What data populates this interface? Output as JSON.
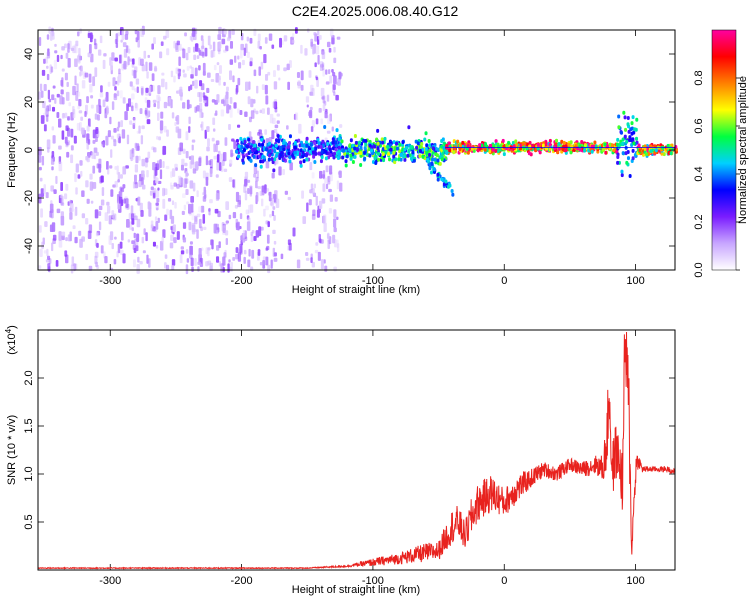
{
  "figure": {
    "title": "C2E4.2025.006.08.40.G12"
  },
  "chart_data": [
    {
      "type": "heatmap",
      "xlabel": "Height of straight line (km)",
      "ylabel": "Frequency (Hz)",
      "xlim": [
        -355,
        130
      ],
      "ylim": [
        -50,
        50
      ],
      "xticks": [
        -300,
        -200,
        -100,
        0,
        100
      ],
      "yticks": [
        -40,
        -20,
        0,
        20,
        40
      ],
      "colorbar": {
        "label": "Normalized spectral amplitude",
        "range": [
          0,
          1
        ],
        "ticks": [
          0.0,
          0.2,
          0.4,
          0.6,
          0.8
        ],
        "colormap": [
          "#ffffff",
          "#c8a6ff",
          "#7a1cff",
          "#0000ff",
          "#00d0ff",
          "#00ff40",
          "#ffff00",
          "#ff8000",
          "#ff0000",
          "#ff00a0"
        ]
      },
      "regions": [
        {
          "x_start": -355,
          "x_end": -125,
          "freq_center": 0,
          "freq_spread": 50,
          "amplitude": 0.15,
          "note_type": "broadband noise"
        },
        {
          "x_start": -205,
          "x_end": -125,
          "freq_center": 0,
          "freq_spread": 5,
          "amplitude": 0.4
        },
        {
          "x_start": -125,
          "x_end": -45,
          "freq_center": 0,
          "freq_spread": 5,
          "amplitude": 0.55
        },
        {
          "x_start": -45,
          "x_end": 85,
          "freq_center": 1,
          "freq_spread": 2,
          "amplitude": 0.9
        },
        {
          "x_start": 85,
          "x_end": 100,
          "freq_center": 2,
          "freq_spread": 12,
          "amplitude": 0.5
        },
        {
          "x_start": 100,
          "x_end": 130,
          "freq_center": 0,
          "freq_spread": 2,
          "amplitude": 0.85
        }
      ],
      "colors": {
        "line": "#0000ff"
      }
    },
    {
      "type": "line",
      "xlabel": "Height of straight line (km)",
      "ylabel": "SNR (10 * v/v)",
      "multiplier_label": "(x10",
      "multiplier_exp": "4",
      "multiplier_close": ")",
      "xlim": [
        -355,
        130
      ],
      "ylim": [
        0,
        2.5
      ],
      "xticks": [
        -300,
        -200,
        -100,
        0,
        100
      ],
      "yticks": [
        0.5,
        1.0,
        1.5,
        2.0
      ],
      "ytick_labels": [
        "0.5",
        "1.0",
        "1.5",
        "2.0"
      ],
      "series": [
        {
          "color": "#e8221e",
          "x": [
            -355,
            -300,
            -250,
            -200,
            -150,
            -120,
            -100,
            -80,
            -60,
            -50,
            -40,
            -35,
            -30,
            -25,
            -20,
            -10,
            0,
            10,
            20,
            30,
            40,
            50,
            60,
            70,
            75,
            78,
            80,
            82,
            85,
            88,
            90,
            92,
            95,
            97,
            100,
            102,
            105,
            110,
            115,
            120,
            125,
            130
          ],
          "values": [
            0.02,
            0.02,
            0.02,
            0.02,
            0.02,
            0.04,
            0.08,
            0.12,
            0.18,
            0.2,
            0.45,
            0.5,
            0.35,
            0.55,
            0.7,
            0.8,
            0.7,
            0.85,
            0.95,
            1.05,
            1.0,
            1.1,
            1.05,
            1.1,
            1.05,
            1.3,
            1.9,
            1.0,
            1.25,
            1.1,
            0.9,
            2.4,
            1.6,
            0.2,
            1.05,
            1.15,
            1.05,
            1.05,
            1.05,
            1.05,
            1.05,
            1.02
          ],
          "jitter": [
            0.005,
            0.005,
            0.005,
            0.005,
            0.005,
            0.01,
            0.04,
            0.06,
            0.1,
            0.1,
            0.18,
            0.18,
            0.15,
            0.2,
            0.2,
            0.2,
            0.15,
            0.15,
            0.1,
            0.08,
            0.08,
            0.07,
            0.08,
            0.1,
            0.15,
            0.3,
            0.4,
            0.3,
            0.3,
            0.25,
            0.35,
            0.5,
            0.5,
            0.1,
            0.2,
            0.08,
            0.04,
            0.03,
            0.03,
            0.03,
            0.03,
            0.03
          ]
        }
      ]
    }
  ]
}
